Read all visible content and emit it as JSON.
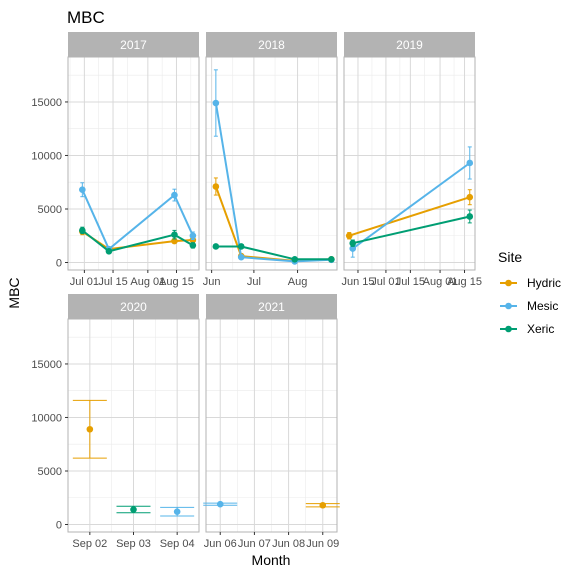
{
  "chart_data": {
    "type": "line",
    "title": "MBC",
    "xlabel": "Month",
    "ylabel": "MBC",
    "ylim": [
      -700,
      19200
    ],
    "y_ticks": [
      0,
      5000,
      10000,
      15000
    ],
    "y_tick_labels": [
      "0",
      "5000",
      "10000",
      "15000"
    ],
    "grid": true,
    "legend": {
      "title": "Site",
      "placement": "right",
      "entries": [
        {
          "name": "Hydric",
          "color": "#E69F00"
        },
        {
          "name": "Mesic",
          "color": "#56B4E9"
        },
        {
          "name": "Xeric",
          "color": "#009E73"
        }
      ]
    },
    "panels": [
      {
        "label": "2017",
        "xlim": [
          "2017-06-23",
          "2017-08-26"
        ],
        "x_ticks": [
          {
            "value": "2017-07-01",
            "label": "Jul 01"
          },
          {
            "value": "2017-07-15",
            "label": "Jul 15"
          },
          {
            "value": "2017-08-01",
            "label": "Aug 01"
          },
          {
            "value": "2017-08-15",
            "label": "Aug 15"
          }
        ],
        "series": [
          {
            "name": "Hydric",
            "points": [
              {
                "x": "2017-06-30",
                "y": 2900,
                "err": 300
              },
              {
                "x": "2017-07-13",
                "y": 1250,
                "err": 150
              },
              {
                "x": "2017-08-14",
                "y": 2000,
                "err": 200
              },
              {
                "x": "2017-08-23",
                "y": 2100,
                "err": 200
              }
            ]
          },
          {
            "name": "Mesic",
            "points": [
              {
                "x": "2017-06-30",
                "y": 6800,
                "err": 650
              },
              {
                "x": "2017-07-13",
                "y": 1250,
                "err": 200
              },
              {
                "x": "2017-08-14",
                "y": 6300,
                "err": 550
              },
              {
                "x": "2017-08-23",
                "y": 2500,
                "err": 350
              }
            ]
          },
          {
            "name": "Xeric",
            "points": [
              {
                "x": "2017-06-30",
                "y": 3000,
                "err": 300
              },
              {
                "x": "2017-07-13",
                "y": 1050,
                "err": 150
              },
              {
                "x": "2017-08-14",
                "y": 2600,
                "err": 400
              },
              {
                "x": "2017-08-23",
                "y": 1600,
                "err": 250
              }
            ]
          }
        ]
      },
      {
        "label": "2018",
        "xlim": [
          "2018-05-28",
          "2018-08-29"
        ],
        "x_ticks": [
          {
            "value": "2018-06-01",
            "label": "Jun"
          },
          {
            "value": "2018-07-01",
            "label": "Jul"
          },
          {
            "value": "2018-08-01",
            "label": "Aug"
          }
        ],
        "series": [
          {
            "name": "Hydric",
            "points": [
              {
                "x": "2018-06-04",
                "y": 7100,
                "err": 800
              },
              {
                "x": "2018-06-22",
                "y": 600,
                "err": 150
              },
              {
                "x": "2018-07-30",
                "y": 150,
                "err": 80
              },
              {
                "x": "2018-08-25",
                "y": 300,
                "err": 80
              }
            ]
          },
          {
            "name": "Mesic",
            "points": [
              {
                "x": "2018-06-04",
                "y": 14900,
                "err": 3100
              },
              {
                "x": "2018-06-22",
                "y": 500,
                "err": 150
              },
              {
                "x": "2018-07-30",
                "y": 100,
                "err": 80
              },
              {
                "x": "2018-08-25",
                "y": 250,
                "err": 80
              }
            ]
          },
          {
            "name": "Xeric",
            "points": [
              {
                "x": "2018-06-04",
                "y": 1500,
                "err": 150
              },
              {
                "x": "2018-06-22",
                "y": 1500,
                "err": 150
              },
              {
                "x": "2018-07-30",
                "y": 300,
                "err": 80
              },
              {
                "x": "2018-08-25",
                "y": 300,
                "err": 80
              }
            ]
          }
        ]
      },
      {
        "label": "2019",
        "xlim": [
          "2019-06-07",
          "2019-08-21"
        ],
        "x_ticks": [
          {
            "value": "2019-06-15",
            "label": "Jun 15"
          },
          {
            "value": "2019-07-01",
            "label": "Jul 01"
          },
          {
            "value": "2019-07-15",
            "label": "Jul 15"
          },
          {
            "value": "2019-08-01",
            "label": "Aug 01"
          },
          {
            "value": "2019-08-15",
            "label": "Aug 15"
          }
        ],
        "series": [
          {
            "name": "Hydric",
            "points": [
              {
                "x": "2019-06-10",
                "y": 2500,
                "err": 300
              },
              {
                "x": "2019-08-18",
                "y": 6100,
                "err": 700
              }
            ]
          },
          {
            "name": "Mesic",
            "points": [
              {
                "x": "2019-06-12",
                "y": 1300,
                "err": 800
              },
              {
                "x": "2019-08-18",
                "y": 9300,
                "err": 1500
              }
            ]
          },
          {
            "name": "Xeric",
            "points": [
              {
                "x": "2019-06-12",
                "y": 1800,
                "err": 300
              },
              {
                "x": "2019-08-18",
                "y": 4300,
                "err": 600
              }
            ]
          }
        ]
      },
      {
        "label": "2020",
        "xlim": [
          "2020-09-01 12:00",
          "2020-09-04 12:00"
        ],
        "x_ticks": [
          {
            "value": "2020-09-02",
            "label": "Sep 02"
          },
          {
            "value": "2020-09-03",
            "label": "Sep 03"
          },
          {
            "value": "2020-09-04",
            "label": "Sep 04"
          }
        ],
        "series": [
          {
            "name": "Hydric",
            "points": [
              {
                "x": "2020-09-02",
                "y": 8900,
                "err": 2700
              }
            ]
          },
          {
            "name": "Mesic",
            "points": [
              {
                "x": "2020-09-04",
                "y": 1200,
                "err": 400
              }
            ]
          },
          {
            "name": "Xeric",
            "points": [
              {
                "x": "2020-09-03",
                "y": 1400,
                "err": 300
              }
            ]
          }
        ]
      },
      {
        "label": "2021",
        "xlim": [
          "2021-06-05 14:00",
          "2021-06-09 10:00"
        ],
        "x_ticks": [
          {
            "value": "2021-06-06",
            "label": "Jun 06"
          },
          {
            "value": "2021-06-07",
            "label": "Jun 07"
          },
          {
            "value": "2021-06-08",
            "label": "Jun 08"
          },
          {
            "value": "2021-06-09",
            "label": "Jun 09"
          }
        ],
        "series": [
          {
            "name": "Hydric",
            "points": [
              {
                "x": "2021-06-09",
                "y": 1800,
                "err": 150
              }
            ]
          },
          {
            "name": "Mesic",
            "points": [
              {
                "x": "2021-06-06",
                "y": 1900,
                "err": 100
              }
            ]
          }
        ]
      }
    ]
  }
}
